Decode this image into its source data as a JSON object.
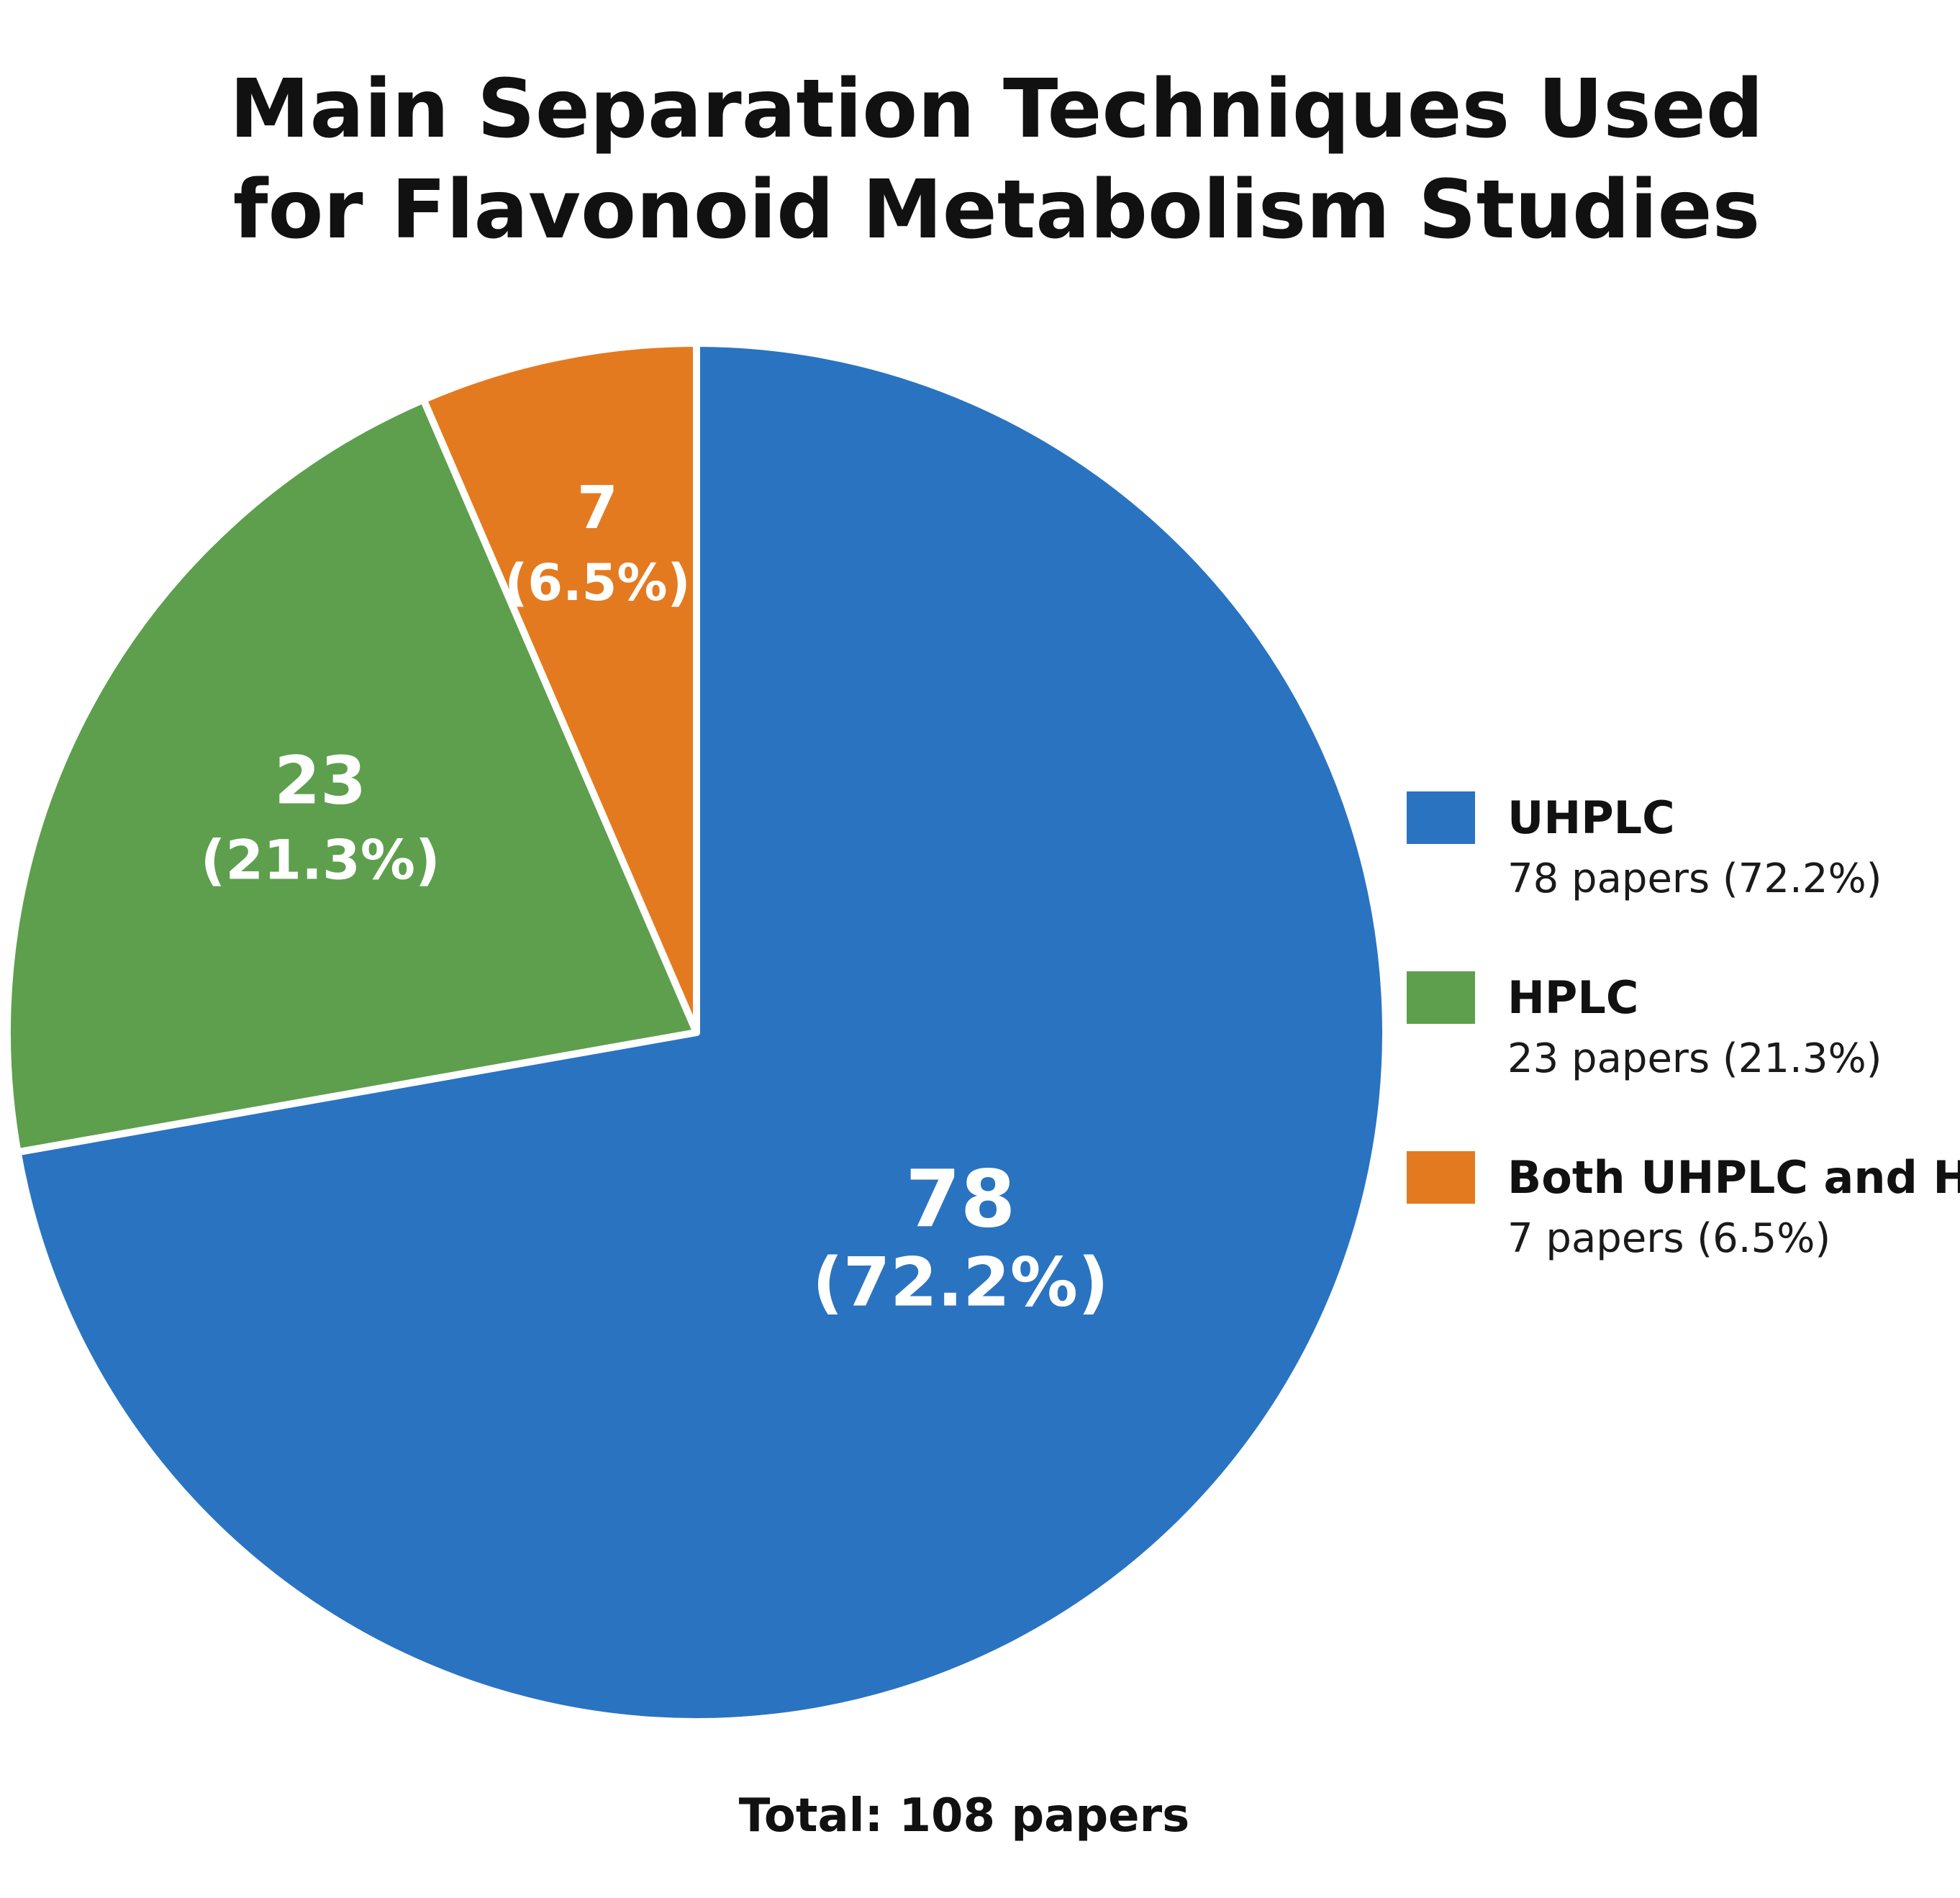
{
  "chart_data": {
    "type": "pie",
    "title_lines": [
      "Main Separation Techniques Used",
      "for Flavonoid Metabolism Studies"
    ],
    "slices": [
      {
        "name": "UHPLC",
        "value": 78,
        "percent_label": "(72.2%)",
        "legend_detail": "78 papers (72.2%)",
        "color": "#2a73c1"
      },
      {
        "name": "HPLC",
        "value": 23,
        "percent_label": "(21.3%)",
        "legend_detail": "23 papers (21.3%)",
        "color": "#5d9f4d"
      },
      {
        "name": "Both UHPLC and HPLC",
        "value": 7,
        "percent_label": "(6.5%)",
        "legend_detail": "7 papers (6.5%)",
        "color": "#e47a1f"
      }
    ],
    "legend_position": "right",
    "total_label": "Total: 108 papers"
  }
}
